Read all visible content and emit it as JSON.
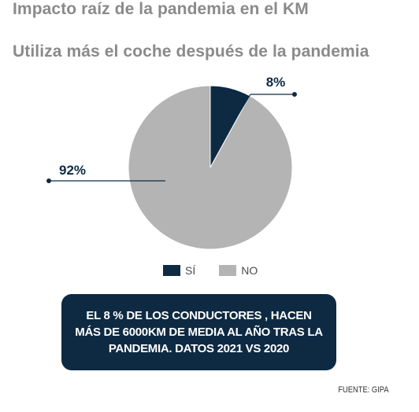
{
  "title": "Impacto raíz de la pandemia en el KM",
  "subtitle": "Utiliza más el coche después de la pandemia",
  "chart_data": {
    "type": "pie",
    "slices": [
      {
        "label": "SÍ",
        "value": 8,
        "value_label": "8%",
        "color": "#0e2a43"
      },
      {
        "label": "NO",
        "value": 92,
        "value_label": "92%",
        "color": "#b4b4b4"
      }
    ],
    "legend_position": "bottom"
  },
  "callout": {
    "text": "EL 8 % DE LOS CONDUCTORES , HACEN MÁS DE 6000KM DE MEDIA AL AÑO TRAS LA PANDEMIA. DATOS 2021 VS 2020"
  },
  "source": "FUENTE: GIPA"
}
